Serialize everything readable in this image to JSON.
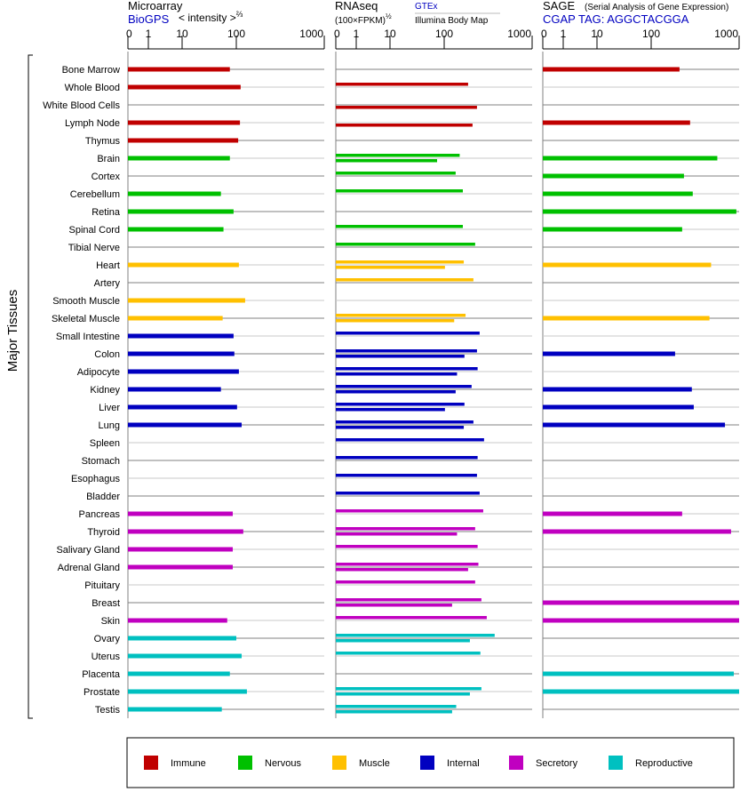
{
  "chart_data": {
    "type": "bar",
    "ylabel": "Major Tissues",
    "panels": [
      {
        "id": "microarray",
        "title": "Microarray",
        "source": "BioGPS",
        "unit": "< intensity >",
        "unit_exp": "⅔"
      },
      {
        "id": "rnaseq",
        "title": "RNAseq",
        "unit": "(100×FPKM)",
        "unit_exp": "½",
        "series_top": "GTEx",
        "series_bottom": "Illumina Body Map"
      },
      {
        "id": "sage",
        "title": "SAGE",
        "subtitle": "(Serial Analysis of Gene Expression)",
        "tag": "CGAP TAG: AGGCTACGGA"
      }
    ],
    "ticks": [
      "0",
      "1",
      "10",
      "100",
      "1000"
    ],
    "tick_values": [
      0,
      1,
      10,
      100,
      1000
    ],
    "groups": {
      "immune": {
        "label": "Immune",
        "color": "#c00000"
      },
      "nervous": {
        "label": "Nervous",
        "color": "#00c000"
      },
      "muscle": {
        "label": "Muscle",
        "color": "#ffc000"
      },
      "internal": {
        "label": "Internal",
        "color": "#0000c0"
      },
      "secretory": {
        "label": "Secretory",
        "color": "#c000c0"
      },
      "reproductive": {
        "label": "Reproductive",
        "color": "#00c0c0"
      }
    },
    "legend_order": [
      "immune",
      "nervous",
      "muscle",
      "internal",
      "secretory",
      "reproductive"
    ],
    "tissues": [
      {
        "name": "Bone Marrow",
        "group": "immune",
        "microarray": 76,
        "gtex": null,
        "illumina": null,
        "sage": 210
      },
      {
        "name": "Whole Blood",
        "group": "immune",
        "microarray": 112,
        "gtex": 187,
        "illumina": null,
        "sage": null
      },
      {
        "name": "White Blood Cells",
        "group": "immune",
        "microarray": null,
        "gtex": null,
        "illumina": 236,
        "sage": null
      },
      {
        "name": "Lymph Node",
        "group": "immune",
        "microarray": 110,
        "gtex": null,
        "illumina": 210,
        "sage": 277
      },
      {
        "name": "Thymus",
        "group": "immune",
        "microarray": 105,
        "gtex": null,
        "illumina": null,
        "sage": null
      },
      {
        "name": "Brain",
        "group": "nervous",
        "microarray": 76,
        "gtex": 150,
        "illumina": 74,
        "sage": 565
      },
      {
        "name": "Cortex",
        "group": "nervous",
        "microarray": null,
        "gtex": 135,
        "illumina": null,
        "sage": 236
      },
      {
        "name": "Cerebellum",
        "group": "nervous",
        "microarray": 52,
        "gtex": 163,
        "illumina": null,
        "sage": 297
      },
      {
        "name": "Retina",
        "group": "nervous",
        "microarray": 89,
        "gtex": null,
        "illumina": null,
        "sage": 930
      },
      {
        "name": "Spinal Cord",
        "group": "nervous",
        "microarray": 58,
        "gtex": 163,
        "illumina": null,
        "sage": 225
      },
      {
        "name": "Tibial Nerve",
        "group": "nervous",
        "microarray": null,
        "gtex": 225,
        "illumina": null,
        "sage": null
      },
      {
        "name": "Heart",
        "group": "muscle",
        "microarray": 107,
        "gtex": 167,
        "illumina": 102,
        "sage": 480
      },
      {
        "name": "Artery",
        "group": "muscle",
        "microarray": null,
        "gtex": 215,
        "illumina": null,
        "sage": null
      },
      {
        "name": "Smooth Muscle",
        "group": "muscle",
        "microarray": 126,
        "gtex": null,
        "illumina": null,
        "sage": null
      },
      {
        "name": "Skeletal Muscle",
        "group": "muscle",
        "microarray": 56,
        "gtex": 175,
        "illumina": 130,
        "sage": 460
      },
      {
        "name": "Small Intestine",
        "group": "internal",
        "microarray": 89,
        "gtex": 253,
        "illumina": null,
        "sage": null
      },
      {
        "name": "Colon",
        "group": "internal",
        "microarray": 92,
        "gtex": 236,
        "illumina": 170,
        "sage": 187
      },
      {
        "name": "Adipocyte",
        "group": "internal",
        "microarray": 107,
        "gtex": 240,
        "illumina": 140,
        "sage": null
      },
      {
        "name": "Kidney",
        "group": "internal",
        "microarray": 52,
        "gtex": 205,
        "illumina": 135,
        "sage": 290
      },
      {
        "name": "Liver",
        "group": "internal",
        "microarray": 102,
        "gtex": 170,
        "illumina": 102,
        "sage": 305
      },
      {
        "name": "Lung",
        "group": "internal",
        "microarray": 115,
        "gtex": 215,
        "illumina": 167,
        "sage": 690
      },
      {
        "name": "Spleen",
        "group": "internal",
        "microarray": null,
        "gtex": 284,
        "illumina": null,
        "sage": null
      },
      {
        "name": "Stomach",
        "group": "internal",
        "microarray": null,
        "gtex": 240,
        "illumina": null,
        "sage": null
      },
      {
        "name": "Esophagus",
        "group": "internal",
        "microarray": null,
        "gtex": 236,
        "illumina": null,
        "sage": null
      },
      {
        "name": "Bladder",
        "group": "internal",
        "microarray": null,
        "gtex": 253,
        "illumina": null,
        "sage": null
      },
      {
        "name": "Pancreas",
        "group": "secretory",
        "microarray": 86,
        "gtex": 278,
        "illumina": null,
        "sage": 225
      },
      {
        "name": "Thyroid",
        "group": "secretory",
        "microarray": 120,
        "gtex": 225,
        "illumina": 140,
        "sage": 810
      },
      {
        "name": "Salivary Gland",
        "group": "secretory",
        "microarray": 86,
        "gtex": 240,
        "illumina": null,
        "sage": null
      },
      {
        "name": "Adrenal Gland",
        "group": "secretory",
        "microarray": 86,
        "gtex": 245,
        "illumina": 187,
        "sage": null
      },
      {
        "name": "Pituitary",
        "group": "secretory",
        "microarray": null,
        "gtex": 225,
        "illumina": null,
        "sage": null
      },
      {
        "name": "Breast",
        "group": "secretory",
        "microarray": null,
        "gtex": 265,
        "illumina": 123,
        "sage": 1000
      },
      {
        "name": "Skin",
        "group": "secretory",
        "microarray": 68,
        "gtex": 305,
        "illumina": null,
        "sage": 1000
      },
      {
        "name": "Ovary",
        "group": "reproductive",
        "microarray": 100,
        "gtex": 375,
        "illumina": 196,
        "sage": null
      },
      {
        "name": "Uterus",
        "group": "reproductive",
        "microarray": 115,
        "gtex": 258,
        "illumina": null,
        "sage": null
      },
      {
        "name": "Placenta",
        "group": "reproductive",
        "microarray": 76,
        "gtex": null,
        "illumina": null,
        "sage": 870
      },
      {
        "name": "Prostate",
        "group": "reproductive",
        "microarray": 132,
        "gtex": 265,
        "illumina": 196,
        "sage": 1000
      },
      {
        "name": "Testis",
        "group": "reproductive",
        "microarray": 54,
        "gtex": 137,
        "illumina": 123,
        "sage": null
      }
    ]
  }
}
